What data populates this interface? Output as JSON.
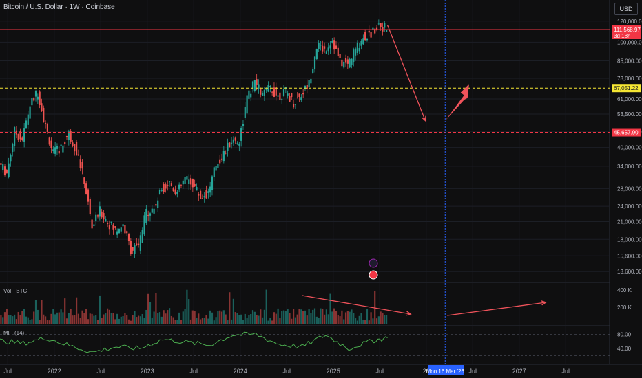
{
  "header": {
    "title": "Bitcoin / U.S. Dollar · 1W · Coinbase",
    "currency_button": "USD"
  },
  "colors": {
    "background": "#0f0f10",
    "up_candle": "#26a69a",
    "down_candle": "#ef5350",
    "arrow": "#f0535b",
    "yellow_line": "#f5e633",
    "mfi_line": "#4caf50",
    "date_marker": "#2962ff"
  },
  "chart_data": [
    {
      "type": "candlestick",
      "title": "Bitcoin / U.S. Dollar · 1W · Coinbase",
      "y_scale": "log",
      "y_ticks": [
        "120,000.00",
        "100,000.00",
        "85,000.00",
        "73,000.00",
        "61,000.00",
        "53,500.00",
        "46,000.00",
        "40,000.00",
        "34,000.00",
        "28,000.00",
        "24,000.00",
        "21,000.00",
        "18,000.00",
        "15,600.00",
        "13,600.00"
      ],
      "x_ticks": [
        "Jul",
        "2022",
        "Jul",
        "2023",
        "Jul",
        "2024",
        "Jul",
        "2025",
        "Jul",
        "20",
        "Jul",
        "2027",
        "Jul"
      ],
      "price_labels": [
        {
          "value": "111,568.97",
          "sub": "3d 18h",
          "color": "#f23645"
        },
        {
          "value": "67,051.22",
          "sub": "",
          "color": "#f5e633"
        },
        {
          "value": "45,657.90",
          "sub": "",
          "color": "#f23645"
        }
      ],
      "horizontal_lines": [
        {
          "price": 111568.97,
          "style": "solid",
          "color": "#f23645"
        },
        {
          "price": 67051.22,
          "style": "dashed",
          "color": "#f5e633"
        },
        {
          "price": 45657.9,
          "style": "dashed",
          "color": "#f23645"
        }
      ],
      "date_marker": "Mon 16 Mar '26",
      "price_path": [
        [
          "2021-06",
          35000
        ],
        [
          "2021-07",
          32000
        ],
        [
          "2021-08",
          46000
        ],
        [
          "2021-09",
          43000
        ],
        [
          "2021-10",
          58000
        ],
        [
          "2021-11",
          65000
        ],
        [
          "2021-12",
          48000
        ],
        [
          "2022-01",
          38000
        ],
        [
          "2022-02",
          40000
        ],
        [
          "2022-03",
          45000
        ],
        [
          "2022-04",
          39000
        ],
        [
          "2022-05",
          30000
        ],
        [
          "2022-06",
          20000
        ],
        [
          "2022-07",
          23000
        ],
        [
          "2022-08",
          21000
        ],
        [
          "2022-09",
          19500
        ],
        [
          "2022-10",
          20500
        ],
        [
          "2022-11",
          16500
        ],
        [
          "2022-12",
          16800
        ],
        [
          "2023-01",
          23000
        ],
        [
          "2023-02",
          23500
        ],
        [
          "2023-03",
          28000
        ],
        [
          "2023-04",
          29500
        ],
        [
          "2023-05",
          27000
        ],
        [
          "2023-06",
          30500
        ],
        [
          "2023-07",
          29300
        ],
        [
          "2023-08",
          26000
        ],
        [
          "2023-09",
          27000
        ],
        [
          "2023-10",
          34500
        ],
        [
          "2023-11",
          37800
        ],
        [
          "2023-12",
          42500
        ],
        [
          "2024-01",
          42500
        ],
        [
          "2024-02",
          61000
        ],
        [
          "2024-03",
          71000
        ],
        [
          "2024-04",
          63000
        ],
        [
          "2024-05",
          67500
        ],
        [
          "2024-06",
          62500
        ],
        [
          "2024-07",
          65000
        ],
        [
          "2024-08",
          59000
        ],
        [
          "2024-09",
          63500
        ],
        [
          "2024-10",
          70000
        ],
        [
          "2024-11",
          97000
        ],
        [
          "2024-12",
          94000
        ],
        [
          "2025-01",
          102000
        ],
        [
          "2025-02",
          84000
        ],
        [
          "2025-03",
          82500
        ],
        [
          "2025-04",
          94000
        ],
        [
          "2025-05",
          104500
        ],
        [
          "2025-06",
          107000
        ],
        [
          "2025-07",
          118000
        ],
        [
          "2025-08",
          111500
        ]
      ]
    },
    {
      "type": "bar",
      "name": "Vol · BTC",
      "y_ticks": [
        "400 K",
        "200 K"
      ]
    },
    {
      "type": "line",
      "name": "MFI (14)",
      "y_ticks": [
        "80.00",
        "40.00"
      ],
      "x": [
        "2021-06",
        "2021-09",
        "2021-12",
        "2022-03",
        "2022-06",
        "2022-09",
        "2022-12",
        "2023-03",
        "2023-06",
        "2023-09",
        "2023-12",
        "2024-03",
        "2024-06",
        "2024-09",
        "2024-12",
        "2025-03",
        "2025-06",
        "2025-08"
      ],
      "values": [
        62,
        55,
        70,
        48,
        30,
        45,
        40,
        66,
        58,
        50,
        78,
        80,
        52,
        45,
        78,
        40,
        62,
        70
      ]
    }
  ]
}
